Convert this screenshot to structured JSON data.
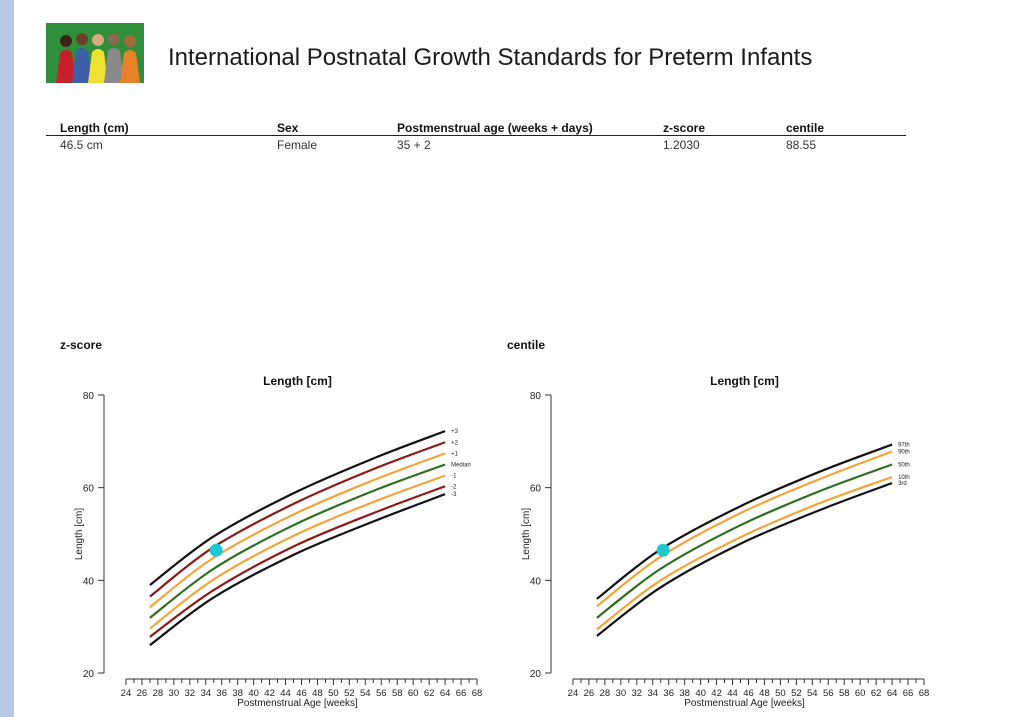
{
  "header": {
    "title": "International Postnatal Growth Standards for Preterm Infants",
    "logo": "women-illustration-logo"
  },
  "summary": {
    "columns": [
      "Length (cm)",
      "Sex",
      "Postmenstrual age (weeks + days)",
      "z-score",
      "centile"
    ],
    "values": [
      "46.5 cm",
      "Female",
      "35 + 2",
      "1.2030",
      "88.55"
    ]
  },
  "sections": {
    "zscore": "z-score",
    "centile": "centile"
  },
  "colors": {
    "black": "#111111",
    "darkred": "#8b1a1a",
    "orange": "#f2a53a",
    "green": "#2e6e1e",
    "marker": "#1ec8d2"
  },
  "chart_data": [
    {
      "type": "line",
      "title": "Length [cm]",
      "xlabel": "Postmenstrual Age [weeks]",
      "ylabel": "Length [cm]",
      "xlim": [
        22,
        69
      ],
      "ylim": [
        20,
        80
      ],
      "x_ticks": [
        24,
        26,
        28,
        30,
        32,
        34,
        36,
        38,
        40,
        42,
        44,
        46,
        48,
        50,
        52,
        54,
        56,
        58,
        60,
        62,
        64,
        66,
        68
      ],
      "y_ticks": [
        20,
        40,
        60,
        80
      ],
      "grid": false,
      "series": [
        {
          "name": "+3",
          "color": "black",
          "x": [
            27,
            35,
            45,
            55,
            64
          ],
          "values": [
            39.0,
            49.5,
            58.8,
            66.3,
            72.2
          ]
        },
        {
          "name": "+2",
          "color": "darkred",
          "x": [
            27,
            35,
            45,
            55,
            64
          ],
          "values": [
            36.5,
            47.2,
            56.5,
            64.0,
            69.8
          ]
        },
        {
          "name": "+1",
          "color": "orange",
          "x": [
            27,
            35,
            45,
            55,
            64
          ],
          "values": [
            34.2,
            44.9,
            54.2,
            61.6,
            67.4
          ]
        },
        {
          "name": "Median",
          "color": "green",
          "x": [
            27,
            35,
            45,
            55,
            64
          ],
          "values": [
            31.9,
            42.5,
            51.9,
            59.3,
            65.0
          ]
        },
        {
          "name": "-1",
          "color": "orange",
          "x": [
            27,
            35,
            45,
            55,
            64
          ],
          "values": [
            29.6,
            40.2,
            49.6,
            56.9,
            62.6
          ]
        },
        {
          "name": "-2",
          "color": "darkred",
          "x": [
            27,
            35,
            45,
            55,
            64
          ],
          "values": [
            27.8,
            37.9,
            47.3,
            54.5,
            60.3
          ]
        },
        {
          "name": "-3",
          "color": "black",
          "x": [
            27,
            35,
            45,
            55,
            64
          ],
          "values": [
            26.0,
            36.3,
            45.5,
            52.7,
            58.6
          ]
        }
      ],
      "point": {
        "x": 35.3,
        "y": 46.5
      }
    },
    {
      "type": "line",
      "title": "Length [cm]",
      "xlabel": "Postmenstrual Age [weeks]",
      "ylabel": "Length [cm]",
      "xlim": [
        22,
        69
      ],
      "ylim": [
        20,
        80
      ],
      "x_ticks": [
        24,
        26,
        28,
        30,
        32,
        34,
        36,
        38,
        40,
        42,
        44,
        46,
        48,
        50,
        52,
        54,
        56,
        58,
        60,
        62,
        64,
        66,
        68
      ],
      "y_ticks": [
        20,
        40,
        60,
        80
      ],
      "grid": false,
      "series": [
        {
          "name": "97th",
          "color": "black",
          "x": [
            27,
            35,
            45,
            55,
            64
          ],
          "values": [
            36.0,
            46.7,
            56.0,
            63.5,
            69.3
          ]
        },
        {
          "name": "90th",
          "color": "orange",
          "x": [
            27,
            35,
            45,
            55,
            64
          ],
          "values": [
            34.4,
            45.1,
            54.5,
            61.9,
            67.8
          ]
        },
        {
          "name": "50th",
          "color": "green",
          "x": [
            27,
            35,
            45,
            55,
            64
          ],
          "values": [
            31.9,
            42.5,
            51.9,
            59.3,
            65.0
          ]
        },
        {
          "name": "10th",
          "color": "orange",
          "x": [
            27,
            35,
            45,
            55,
            64
          ],
          "values": [
            29.4,
            40.0,
            49.3,
            56.7,
            62.3
          ]
        },
        {
          "name": "3rd",
          "color": "black",
          "x": [
            27,
            35,
            45,
            55,
            64
          ],
          "values": [
            28.0,
            38.5,
            47.9,
            55.2,
            61.0
          ]
        }
      ],
      "point": {
        "x": 35.3,
        "y": 46.5
      }
    }
  ]
}
